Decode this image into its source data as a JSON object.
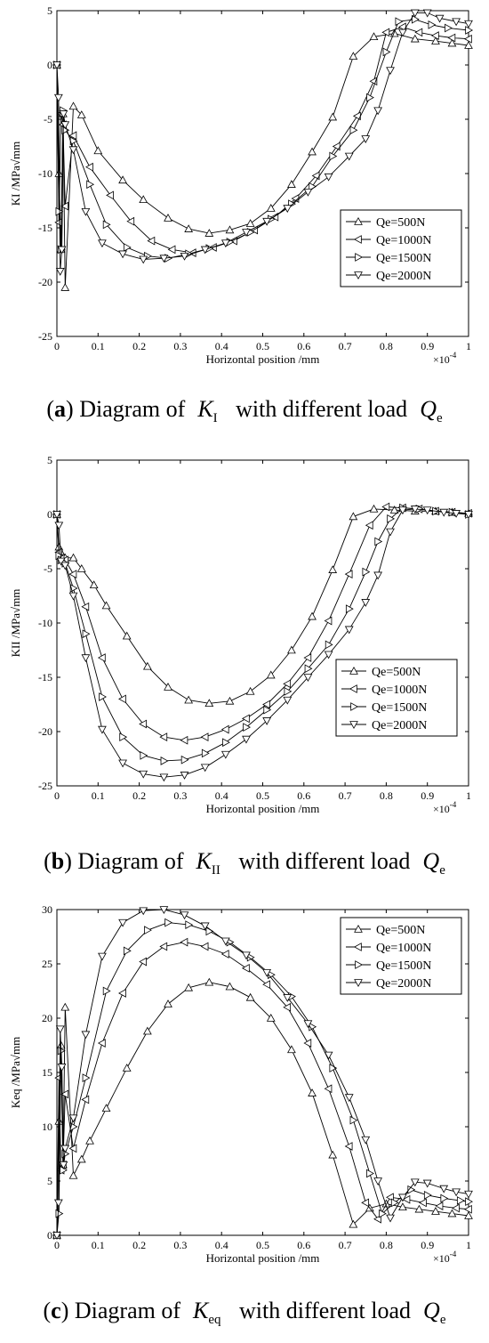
{
  "charts": [
    {
      "caption": {
        "letter": "a",
        "lead": "Diagram of",
        "symbol": "K",
        "subscript": "I",
        "tail": "with different load",
        "load_symbol": "Q",
        "load_subscript": "e"
      },
      "chart_data": {
        "type": "line",
        "xlabel": "Horizontal position /mm",
        "ylabel": "KI /MPa√mm",
        "x_multiplier": "×10",
        "x_multiplier_exp": "-4",
        "xlim": [
          0,
          1
        ],
        "ylim": [
          -25,
          5
        ],
        "xticks": [
          0,
          0.1,
          0.2,
          0.3,
          0.4,
          0.5,
          0.6,
          0.7,
          0.8,
          0.9,
          1
        ],
        "xtick_labels": [
          "0",
          "0.1",
          "0.2",
          "0.3",
          "0.4",
          "0.5",
          "0.6",
          "0.7",
          "0.8",
          "0.9",
          "1"
        ],
        "yticks": [
          -25,
          -20,
          -15,
          -10,
          -5,
          0,
          5
        ],
        "ytick_labels": [
          "-25",
          "-20",
          "-15",
          "-10",
          "-5",
          "0",
          "5"
        ],
        "grid": false,
        "legend_position": "middle-right",
        "series": [
          {
            "name": "Qe=500N",
            "marker": "triangle-up",
            "x": [
              0,
              0.005,
              0.01,
              0.015,
              0.02,
              0.04,
              0.06,
              0.1,
              0.16,
              0.21,
              0.27,
              0.32,
              0.37,
              0.42,
              0.47,
              0.52,
              0.57,
              0.62,
              0.67,
              0.72,
              0.77,
              0.82,
              0.87,
              0.92,
              0.96,
              1.0
            ],
            "y": [
              0,
              -10,
              -17,
              -4.5,
              -20.5,
              -3.8,
              -4.6,
              -7.9,
              -10.6,
              -12.4,
              -14.1,
              -15.1,
              -15.5,
              -15.2,
              -14.6,
              -13.2,
              -11.0,
              -8.0,
              -4.8,
              0.8,
              2.6,
              2.9,
              2.4,
              2.2,
              2.0,
              1.8
            ]
          },
          {
            "name": "Qe=1000N",
            "marker": "triangle-left",
            "x": [
              0,
              0.005,
              0.01,
              0.015,
              0.02,
              0.04,
              0.08,
              0.13,
              0.18,
              0.23,
              0.28,
              0.33,
              0.38,
              0.43,
              0.48,
              0.53,
              0.58,
              0.63,
              0.68,
              0.73,
              0.77,
              0.8,
              0.84,
              0.88,
              0.92,
              0.96,
              1.0
            ],
            "y": [
              0,
              -14.5,
              -4.5,
              -5.5,
              -13,
              -6.5,
              -9.4,
              -12.0,
              -14.4,
              -16.2,
              -17.0,
              -17.3,
              -16.8,
              -16.2,
              -15.2,
              -14.0,
              -12.3,
              -10.2,
              -7.5,
              -4.7,
              -1.5,
              3.0,
              3.5,
              3.0,
              2.7,
              2.5,
              2.4
            ]
          },
          {
            "name": "Qe=1500N",
            "marker": "triangle-right",
            "x": [
              0,
              0.005,
              0.01,
              0.015,
              0.02,
              0.04,
              0.08,
              0.12,
              0.17,
              0.22,
              0.27,
              0.32,
              0.37,
              0.42,
              0.47,
              0.52,
              0.57,
              0.62,
              0.67,
              0.72,
              0.76,
              0.8,
              0.83,
              0.87,
              0.91,
              0.95,
              1.0
            ],
            "y": [
              0,
              -13.5,
              -17,
              -4.2,
              -6.0,
              -7.0,
              -11.0,
              -14.7,
              -16.8,
              -17.6,
              -17.8,
              -17.4,
              -16.9,
              -16.3,
              -15.4,
              -14.2,
              -12.8,
              -11.2,
              -8.4,
              -6.0,
              -3.0,
              1.2,
              4.0,
              4.2,
              3.7,
              3.4,
              3.2
            ]
          },
          {
            "name": "Qe=2000N",
            "marker": "triangle-down",
            "x": [
              0,
              0.004,
              0.008,
              0.012,
              0.016,
              0.02,
              0.04,
              0.07,
              0.11,
              0.16,
              0.21,
              0.26,
              0.31,
              0.36,
              0.41,
              0.46,
              0.51,
              0.56,
              0.61,
              0.66,
              0.71,
              0.75,
              0.78,
              0.81,
              0.84,
              0.87,
              0.9,
              0.93,
              0.97,
              1.0
            ],
            "y": [
              0,
              -3,
              -19,
              -17,
              -4.5,
              -5.5,
              -7.8,
              -13.5,
              -16.4,
              -17.4,
              -17.9,
              -17.8,
              -17.6,
              -17.0,
              -16.4,
              -15.4,
              -14.4,
              -13.2,
              -11.7,
              -10.3,
              -8.4,
              -6.8,
              -4.2,
              -0.5,
              3.0,
              4.8,
              4.8,
              4.3,
              4.0,
              3.8
            ]
          }
        ]
      }
    },
    {
      "caption": {
        "letter": "b",
        "lead": "Diagram of",
        "symbol": "K",
        "subscript": "II",
        "tail": "with different load",
        "load_symbol": "Q",
        "load_subscript": "e"
      },
      "chart_data": {
        "type": "line",
        "xlabel": "Horizontal position /mm",
        "ylabel": "KII /MPa√mm",
        "x_multiplier": "×10",
        "x_multiplier_exp": "-4",
        "xlim": [
          0,
          1
        ],
        "ylim": [
          -25,
          5
        ],
        "xticks": [
          0,
          0.1,
          0.2,
          0.3,
          0.4,
          0.5,
          0.6,
          0.7,
          0.8,
          0.9,
          1
        ],
        "xtick_labels": [
          "0",
          "0.1",
          "0.2",
          "0.3",
          "0.4",
          "0.5",
          "0.6",
          "0.7",
          "0.8",
          "0.9",
          "1"
        ],
        "yticks": [
          -25,
          -20,
          -15,
          -10,
          -5,
          0,
          5
        ],
        "ytick_labels": [
          "-25",
          "-20",
          "-15",
          "-10",
          "-5",
          "0",
          "5"
        ],
        "grid": false,
        "legend_position": "lower-right",
        "series": [
          {
            "name": "Qe=500N",
            "marker": "triangle-up",
            "x": [
              0,
              0.005,
              0.01,
              0.02,
              0.04,
              0.06,
              0.09,
              0.12,
              0.17,
              0.22,
              0.27,
              0.32,
              0.37,
              0.42,
              0.47,
              0.52,
              0.57,
              0.62,
              0.67,
              0.72,
              0.77,
              0.82,
              0.87,
              0.92,
              0.96,
              1.0
            ],
            "y": [
              0,
              -3.0,
              -3.5,
              -4.0,
              -4.0,
              -5.0,
              -6.5,
              -8.4,
              -11.2,
              -14.0,
              -15.9,
              -17.1,
              -17.4,
              -17.2,
              -16.3,
              -14.8,
              -12.5,
              -9.4,
              -5.1,
              -0.2,
              0.5,
              0.4,
              0.3,
              0.3,
              0.2,
              0.1
            ]
          },
          {
            "name": "Qe=1000N",
            "marker": "triangle-left",
            "x": [
              0,
              0.005,
              0.01,
              0.02,
              0.04,
              0.07,
              0.11,
              0.16,
              0.21,
              0.26,
              0.31,
              0.36,
              0.41,
              0.46,
              0.51,
              0.56,
              0.61,
              0.66,
              0.71,
              0.76,
              0.8,
              0.84,
              0.88,
              0.92,
              0.96,
              1.0
            ],
            "y": [
              0,
              -3.5,
              -4.0,
              -4.2,
              -5.5,
              -8.5,
              -13.2,
              -17.0,
              -19.3,
              -20.5,
              -20.8,
              -20.5,
              -19.8,
              -18.8,
              -17.5,
              -15.6,
              -13.2,
              -9.8,
              -5.5,
              -1.0,
              0.7,
              0.6,
              0.5,
              0.3,
              0.2,
              0.1
            ]
          },
          {
            "name": "Qe=1500N",
            "marker": "triangle-right",
            "x": [
              0,
              0.005,
              0.01,
              0.02,
              0.04,
              0.07,
              0.11,
              0.16,
              0.21,
              0.26,
              0.31,
              0.36,
              0.41,
              0.46,
              0.51,
              0.56,
              0.61,
              0.66,
              0.71,
              0.75,
              0.78,
              0.81,
              0.84,
              0.88,
              0.92,
              0.96,
              1.0
            ],
            "y": [
              0,
              -3.8,
              -4.2,
              -4.5,
              -6.8,
              -11.0,
              -16.8,
              -20.5,
              -22.2,
              -22.7,
              -22.6,
              -22.0,
              -21.0,
              -19.6,
              -18.0,
              -16.3,
              -14.2,
              -12.0,
              -8.7,
              -5.3,
              -2.5,
              -0.4,
              0.6,
              0.5,
              0.3,
              0.2,
              0.0
            ]
          },
          {
            "name": "Qe=2000N",
            "marker": "triangle-down",
            "x": [
              0,
              0.005,
              0.01,
              0.02,
              0.04,
              0.07,
              0.11,
              0.16,
              0.21,
              0.26,
              0.31,
              0.36,
              0.41,
              0.46,
              0.51,
              0.56,
              0.61,
              0.66,
              0.71,
              0.75,
              0.78,
              0.81,
              0.84,
              0.87,
              0.9,
              0.94,
              0.97,
              1.0
            ],
            "y": [
              0,
              -1.0,
              -4.3,
              -4.7,
              -7.5,
              -13.2,
              -19.8,
              -22.9,
              -23.9,
              -24.2,
              -24.0,
              -23.3,
              -22.1,
              -20.7,
              -19.0,
              -17.1,
              -15.0,
              -12.9,
              -10.6,
              -8.1,
              -5.6,
              -1.6,
              0.4,
              0.5,
              0.4,
              0.2,
              0.1,
              0.0
            ]
          }
        ]
      }
    },
    {
      "caption": {
        "letter": "c",
        "lead": "Diagram of",
        "symbol": "K",
        "subscript": "eq",
        "tail": "with different load",
        "load_symbol": "Q",
        "load_subscript": "e"
      },
      "chart_data": {
        "type": "line",
        "xlabel": "Horizontal position /mm",
        "ylabel": "Keq /MPa√mm",
        "x_multiplier": "×10",
        "x_multiplier_exp": "-4",
        "xlim": [
          0,
          1
        ],
        "ylim": [
          0,
          30
        ],
        "xticks": [
          0,
          0.1,
          0.2,
          0.3,
          0.4,
          0.5,
          0.6,
          0.7,
          0.8,
          0.9,
          1
        ],
        "xtick_labels": [
          "0",
          "0.1",
          "0.2",
          "0.3",
          "0.4",
          "0.5",
          "0.6",
          "0.7",
          "0.8",
          "0.9",
          "1"
        ],
        "yticks": [
          0,
          5,
          10,
          15,
          20,
          25,
          30
        ],
        "ytick_labels": [
          "0",
          "5",
          "10",
          "15",
          "20",
          "25",
          "30"
        ],
        "grid": false,
        "legend_position": "top-right",
        "series": [
          {
            "name": "Qe=500N",
            "marker": "triangle-up",
            "x": [
              0,
              0.005,
              0.01,
              0.015,
              0.02,
              0.04,
              0.06,
              0.08,
              0.12,
              0.17,
              0.22,
              0.27,
              0.32,
              0.37,
              0.42,
              0.47,
              0.52,
              0.57,
              0.62,
              0.67,
              0.72,
              0.76,
              0.8,
              0.84,
              0.88,
              0.92,
              0.96,
              1.0
            ],
            "y": [
              0,
              10.5,
              17.5,
              6.5,
              21.0,
              5.5,
              7.0,
              8.7,
              11.7,
              15.4,
              18.8,
              21.3,
              22.8,
              23.3,
              22.9,
              21.9,
              20.0,
              17.1,
              13.1,
              7.4,
              1.0,
              2.5,
              2.9,
              2.6,
              2.4,
              2.2,
              2.0,
              1.8
            ]
          },
          {
            "name": "Qe=1000N",
            "marker": "triangle-left",
            "x": [
              0,
              0.005,
              0.01,
              0.015,
              0.02,
              0.04,
              0.07,
              0.11,
              0.16,
              0.21,
              0.26,
              0.31,
              0.36,
              0.41,
              0.46,
              0.51,
              0.56,
              0.61,
              0.66,
              0.71,
              0.75,
              0.78,
              0.81,
              0.85,
              0.89,
              0.93,
              0.97,
              1.0
            ],
            "y": [
              0,
              14.5,
              6.0,
              6.5,
              13.0,
              8.0,
              12.5,
              17.7,
              22.3,
              25.2,
              26.6,
              27.0,
              26.6,
              25.9,
              24.6,
              23.1,
              21.0,
              17.7,
              13.5,
              8.2,
              3.0,
              1.5,
              3.5,
              3.3,
              3.0,
              2.7,
              2.5,
              2.4
            ]
          },
          {
            "name": "Qe=1500N",
            "marker": "triangle-right",
            "x": [
              0,
              0.005,
              0.01,
              0.015,
              0.02,
              0.04,
              0.07,
              0.12,
              0.17,
              0.22,
              0.27,
              0.32,
              0.37,
              0.42,
              0.47,
              0.52,
              0.57,
              0.62,
              0.67,
              0.72,
              0.76,
              0.79,
              0.82,
              0.86,
              0.9,
              0.94,
              0.98,
              1.0
            ],
            "y": [
              0,
              2.0,
              17.0,
              6.0,
              7.5,
              10.0,
              14.5,
              22.5,
              26.2,
              28.1,
              28.8,
              28.6,
              28.0,
              27.0,
              25.6,
              24.0,
              22.0,
              19.2,
              15.4,
              10.6,
              5.7,
              2.0,
              3.0,
              4.2,
              3.7,
              3.4,
              3.2,
              3.1
            ]
          },
          {
            "name": "Qe=2000N",
            "marker": "triangle-down",
            "x": [
              0,
              0.004,
              0.008,
              0.012,
              0.016,
              0.02,
              0.04,
              0.07,
              0.11,
              0.16,
              0.21,
              0.26,
              0.31,
              0.36,
              0.41,
              0.46,
              0.51,
              0.56,
              0.61,
              0.66,
              0.71,
              0.75,
              0.78,
              0.81,
              0.84,
              0.87,
              0.9,
              0.94,
              0.97,
              1.0
            ],
            "y": [
              0,
              3.0,
              19.0,
              15.5,
              6.5,
              8.0,
              10.8,
              18.5,
              25.7,
              28.8,
              29.9,
              30.0,
              29.5,
              28.5,
              27.1,
              25.8,
              24.2,
              21.9,
              19.5,
              16.6,
              12.7,
              8.8,
              5.0,
              1.6,
              3.5,
              4.9,
              4.8,
              4.3,
              4.0,
              3.8
            ]
          }
        ]
      }
    }
  ]
}
